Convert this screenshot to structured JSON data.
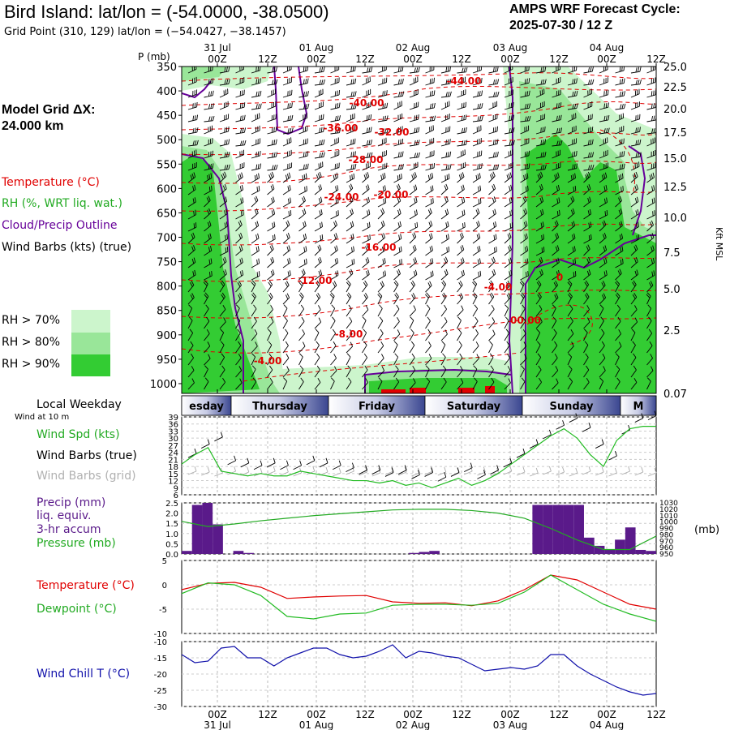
{
  "header": {
    "title": "Bird Island:  lat/lon = (-54.0000, -38.0500)",
    "subtitle": "Grid Point (310, 129) lat/lon = (−54.0427, −38.1457)",
    "cycle_line1": "AMPS WRF Forecast Cycle:",
    "cycle_line2": "2025-07-30 / 12  Z"
  },
  "side": {
    "model_grid_line1": "Model Grid ΔX:",
    "model_grid_line2": " 24.000 km",
    "legend_temperature": "Temperature (°C)",
    "legend_rh": "RH (%, WRT liq. wat.)",
    "legend_cloud": "Cloud/Precip Outline",
    "legend_wind": "Wind Barbs (kts) (true)",
    "rh_levels": [
      "RH > 70%",
      "RH > 80%",
      "RH > 90%"
    ],
    "local_weekday": "Local Weekday",
    "wind_at": "Wind at 10 m",
    "wind_spd": "Wind Spd (kts)",
    "wind_barbs_true": "Wind Barbs (true)",
    "wind_barbs_grid": "Wind Barbs (grid)",
    "precip_1": "Precip (mm)",
    "precip_2": "liq. equiv.",
    "precip_3": "3-hr accum",
    "pressure": "Pressure (mb)",
    "temperature": "Temperature (°C)",
    "dewpoint": "Dewpoint (°C)",
    "wind_chill": "Wind Chill T (°C)"
  },
  "colors": {
    "temperature": "#e00000",
    "rh70": "#ccf5cc",
    "rh80": "#99e699",
    "rh90": "#33cc33",
    "cloud": "#660099",
    "wind_spd": "#22bb22",
    "grid_barbs": "#aaaaaa",
    "precip": "#5a1a8a",
    "windchill": "#1010aa",
    "weekday_band": "#5060a0"
  },
  "chart_data": [
    {
      "type": "heatmap",
      "name": "cross-section",
      "p_axis_label": "P (mb)",
      "right_axis_label": "Kft MSL",
      "p_ticks": [
        350,
        400,
        450,
        500,
        550,
        600,
        650,
        700,
        750,
        800,
        850,
        900,
        950,
        1000
      ],
      "kft_ticks": [
        "25.0",
        "22.5",
        "20.0",
        "17.5",
        "15.0",
        "12.5",
        "10.0",
        "7.5",
        "5.0",
        "2.5",
        "0.07"
      ],
      "time_ticks": [
        "00Z",
        "12Z",
        "00Z",
        "12Z",
        "00Z",
        "12Z",
        "00Z",
        "12Z",
        "00Z",
        "12Z"
      ],
      "date_labels": [
        "31 Jul",
        "01 Aug",
        "02 Aug",
        "03 Aug",
        "04 Aug"
      ],
      "temperature_labels": [
        "-44.00",
        "-40.00",
        "-36.00",
        "-32.00",
        "-28.00",
        "-24.00",
        "-20.00",
        "-16.00",
        "-12.00",
        "-8.00",
        "-4.00",
        "-4.00",
        "00.00",
        "0"
      ]
    },
    {
      "type": "table",
      "name": "local-weekday",
      "days": [
        "esday",
        "Thursday",
        "Friday",
        "Saturday",
        "Sunday",
        "M"
      ]
    },
    {
      "type": "line",
      "name": "wind-speed",
      "ylim": [
        6,
        39
      ],
      "y_ticks": [
        "39",
        "36",
        "33",
        "30",
        "27",
        "24",
        "21",
        "18",
        "15",
        "12",
        "9",
        "6"
      ],
      "hours": [
        0,
        6,
        12,
        18,
        24,
        30,
        36,
        42,
        48,
        54,
        60,
        66,
        72,
        78,
        84,
        90,
        96,
        102,
        108,
        114,
        120,
        126,
        132,
        138,
        144,
        150,
        156,
        162,
        168,
        174,
        180,
        186,
        192,
        198,
        204,
        210,
        216
      ],
      "values": [
        19,
        23,
        26,
        16,
        15,
        14,
        15,
        14,
        14,
        16,
        15,
        14,
        13,
        12,
        12,
        11,
        12,
        10,
        11,
        9,
        11,
        13,
        10,
        12,
        15,
        19,
        23,
        27,
        31,
        34,
        30,
        23,
        18,
        29,
        34,
        35,
        35
      ]
    },
    {
      "type": "bar",
      "name": "precip",
      "ylim": [
        0,
        2.5
      ],
      "y_ticks": [
        "2.5",
        "2.0",
        "1.5",
        "1.0",
        "0.5",
        "0.0"
      ],
      "bars_mm": [
        0.15,
        2.4,
        2.5,
        1.45,
        0,
        0.15,
        0.05,
        0,
        0,
        0,
        0,
        0,
        0,
        0,
        0,
        0,
        0,
        0,
        0,
        0,
        0,
        0,
        0.05,
        0.1,
        0.15,
        0,
        0,
        0,
        0,
        0,
        0,
        0,
        0,
        0,
        2.4,
        2.4,
        2.4,
        2.4,
        2.4,
        0.8,
        0.4,
        0.2,
        0.7,
        1.3,
        0.2,
        0.15
      ]
    },
    {
      "type": "line",
      "name": "pressure",
      "ylim": [
        950,
        1030
      ],
      "y_ticks": [
        "1030",
        "1020",
        "1010",
        "1000",
        "990",
        "980",
        "970",
        "960",
        "950"
      ],
      "unit_label": "(mb)",
      "hours": [
        0,
        12,
        24,
        36,
        48,
        60,
        72,
        84,
        96,
        108,
        120,
        132,
        144,
        156,
        168,
        180,
        192,
        204,
        216
      ],
      "values": [
        1001,
        993,
        997,
        1002,
        1006,
        1010,
        1013,
        1016,
        1019,
        1020,
        1020,
        1018,
        1014,
        1006,
        990,
        972,
        957,
        957,
        978
      ]
    },
    {
      "type": "line",
      "name": "temperature-dewpoint",
      "ylim": [
        -10,
        5
      ],
      "y_ticks": [
        "5",
        "0",
        "-5",
        "-10"
      ],
      "hours": [
        0,
        12,
        24,
        36,
        48,
        60,
        72,
        84,
        96,
        108,
        120,
        132,
        144,
        156,
        168,
        180,
        192,
        204,
        216
      ],
      "series": [
        {
          "name": "Temperature (°C)",
          "values": [
            -1,
            0.3,
            0.5,
            -0.5,
            -2.8,
            -2.5,
            -2.3,
            -2.2,
            -3.5,
            -3.8,
            -3.7,
            -4.3,
            -3.3,
            -1,
            2,
            1,
            -1.5,
            -4,
            -5
          ]
        },
        {
          "name": "Dewpoint (°C)",
          "values": [
            -1.8,
            0.4,
            0,
            -2.2,
            -6.5,
            -7,
            -6,
            -5.8,
            -4.2,
            -4,
            -4,
            -4.2,
            -3.8,
            -1.5,
            2,
            -1,
            -4,
            -6,
            -7.5
          ]
        }
      ]
    },
    {
      "type": "line",
      "name": "wind-chill",
      "ylim": [
        -30,
        -10
      ],
      "y_ticks": [
        "-10",
        "-15",
        "-20",
        "-25",
        "-30"
      ],
      "hours": [
        0,
        6,
        12,
        18,
        24,
        30,
        36,
        42,
        48,
        54,
        60,
        66,
        72,
        78,
        84,
        90,
        96,
        102,
        108,
        114,
        120,
        126,
        132,
        138,
        144,
        150,
        156,
        162,
        168,
        174,
        180,
        186,
        192,
        198,
        204,
        210,
        216
      ],
      "values": [
        -14,
        -16.5,
        -16,
        -12,
        -11.5,
        -15,
        -15,
        -17.5,
        -15,
        -13.5,
        -12,
        -12,
        -14,
        -15,
        -14.5,
        -13,
        -11,
        -15,
        -13,
        -13.5,
        -14.5,
        -15,
        -17,
        -19,
        -18.5,
        -18,
        -18.5,
        -17.5,
        -14,
        -14,
        -17.5,
        -20,
        -22,
        -24,
        -25.5,
        -26.5,
        -26
      ]
    }
  ]
}
